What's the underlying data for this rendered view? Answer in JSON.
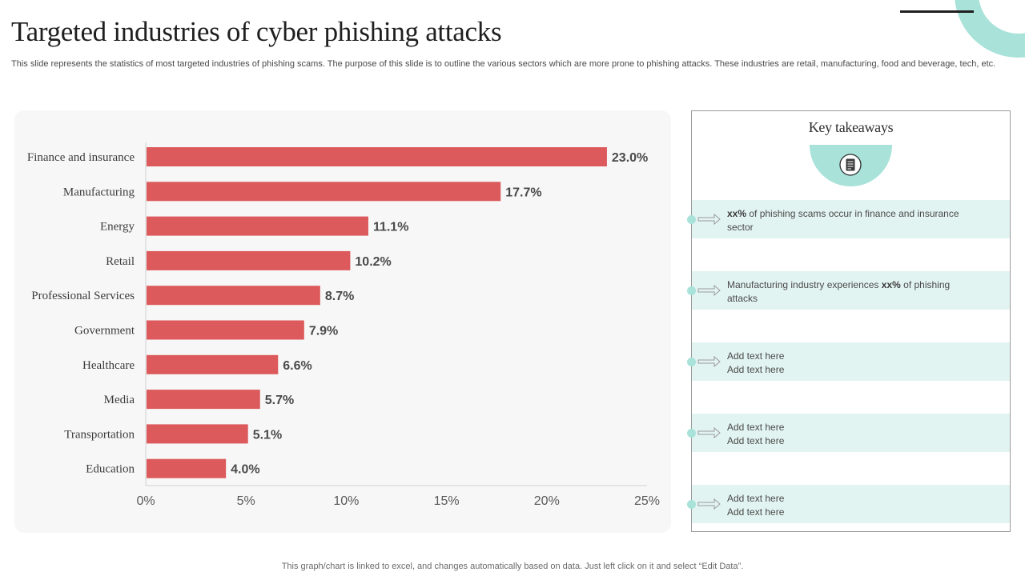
{
  "slide": {
    "title": "Targeted industries of cyber phishing attacks",
    "subtitle": "This slide represents the statistics of most targeted industries of phishing scams. The purpose of this slide is to outline the various sectors which are more prone to phishing attacks. These industries are retail, manufacturing, food and beverage, tech, etc.",
    "footer": "This graph/chart is linked to excel,  and changes automatically based on data. Just left click on it and select “Edit Data”."
  },
  "chart_data": {
    "type": "bar",
    "orientation": "horizontal",
    "title": "",
    "xlabel": "",
    "ylabel": "",
    "categories": [
      "Finance and insurance",
      "Manufacturing",
      "Energy",
      "Retail",
      "Professional Services",
      "Government",
      "Healthcare",
      "Media",
      "Transportation",
      "Education"
    ],
    "values": [
      23.0,
      17.7,
      11.1,
      10.2,
      8.7,
      7.9,
      6.6,
      5.7,
      5.1,
      4.0
    ],
    "value_labels": [
      "23.0%",
      "17.7%",
      "11.1%",
      "10.2%",
      "8.7%",
      "7.9%",
      "6.6%",
      "5.7%",
      "5.1%",
      "4.0%"
    ],
    "xlim": [
      0,
      25
    ],
    "xticks": [
      0,
      5,
      10,
      15,
      20,
      25
    ],
    "xtick_labels": [
      "0%",
      "5%",
      "10%",
      "15%",
      "20%",
      "25%"
    ],
    "grid": false,
    "legend": "none",
    "bar_color": "#dc5a5c"
  },
  "takeaways": {
    "title": "Key takeaways",
    "accent_color": "#a8e2d9",
    "row_color": "#e2f4f1",
    "items": [
      {
        "bold": "xx%",
        "pre": "",
        "post": " of phishing scams occur in finance  and insurance sector"
      },
      {
        "bold": "xx%",
        "pre": "Manufacturing  industry experiences ",
        "post": " of phishing attacks"
      },
      {
        "bold": "",
        "pre": "Add text here",
        "post": "Add text here"
      },
      {
        "bold": "",
        "pre": "Add text here",
        "post": "Add text here"
      },
      {
        "bold": "",
        "pre": "Add text here",
        "post": "Add text here"
      }
    ]
  }
}
